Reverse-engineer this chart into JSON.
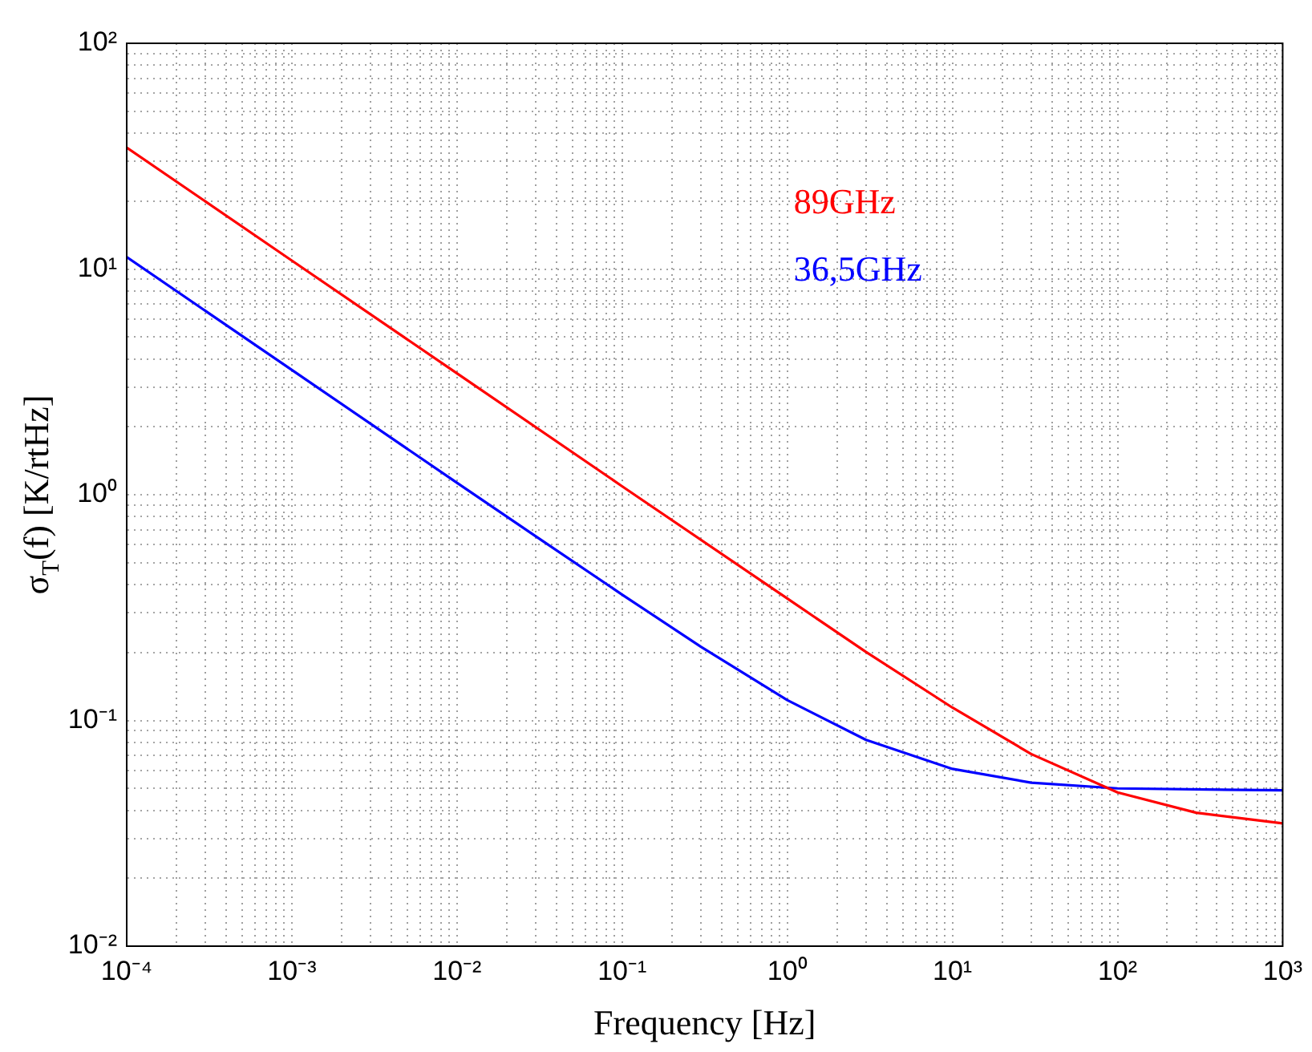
{
  "chart_data": {
    "type": "line",
    "xlabel": "Frequency [Hz]",
    "ylabel": "σ$_{T}$(f) [K/rtHz]",
    "log": "xy",
    "grid": true,
    "legend": false,
    "marker": "none",
    "line_style": "solid",
    "xlim": [
      0.0001,
      1000
    ],
    "ylim": [
      0.01,
      100
    ],
    "xticks": [
      {
        "value": 0.0001,
        "label": "10⁻⁴"
      },
      {
        "value": 0.001,
        "label": "10⁻³"
      },
      {
        "value": 0.01,
        "label": "10⁻²"
      },
      {
        "value": 0.1,
        "label": "10⁻¹"
      },
      {
        "value": 1,
        "label": "10⁰"
      },
      {
        "value": 10,
        "label": "10¹"
      },
      {
        "value": 100,
        "label": "10²"
      },
      {
        "value": 1000,
        "label": "10³"
      }
    ],
    "yticks": [
      {
        "value": 0.01,
        "label": "10⁻²"
      },
      {
        "value": 0.1,
        "label": "10⁻¹"
      },
      {
        "value": 1,
        "label": "10⁰"
      },
      {
        "value": 10,
        "label": "10¹"
      },
      {
        "value": 100,
        "label": "10²"
      }
    ],
    "series": [
      {
        "name": "89GHz",
        "color": "#ff0000",
        "x": [
          0.0001,
          0.001,
          0.01,
          0.1,
          1,
          3,
          10,
          30,
          100,
          300,
          1000
        ],
        "values": [
          34.5,
          10.9,
          3.45,
          1.09,
          0.347,
          0.201,
          0.114,
          0.071,
          0.048,
          0.039,
          0.035
        ]
      },
      {
        "name": "36,5GHz",
        "color": "#0000ff",
        "x": [
          0.0001,
          0.001,
          0.01,
          0.03,
          0.1,
          0.3,
          1,
          3,
          10,
          30,
          100,
          1000
        ],
        "values": [
          11.3,
          3.57,
          1.13,
          0.654,
          0.361,
          0.212,
          0.123,
          0.082,
          0.061,
          0.053,
          0.05,
          0.049
        ]
      }
    ]
  }
}
